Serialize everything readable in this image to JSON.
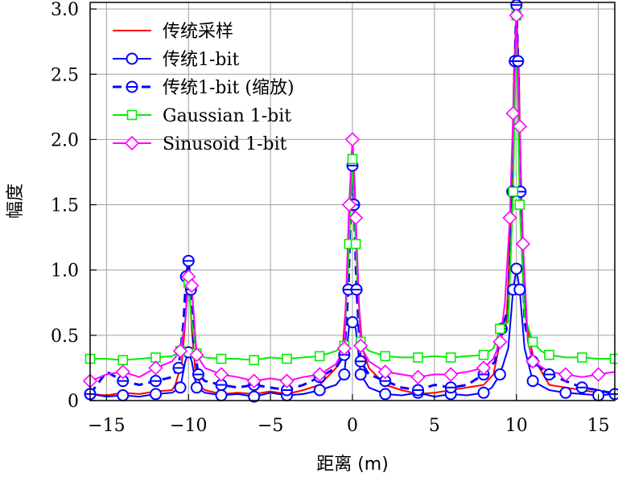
{
  "chart_data": {
    "type": "line",
    "xlabel": "距离 (m)",
    "ylabel": "幅度",
    "xlim": [
      -16,
      16
    ],
    "ylim": [
      0,
      3.05
    ],
    "xticks": [
      -15,
      -10,
      -5,
      0,
      5,
      10,
      15
    ],
    "xtick_labels": [
      "−15",
      "−10",
      "−5",
      "0",
      "5",
      "10",
      "15"
    ],
    "yticks": [
      0,
      0.5,
      1.0,
      1.5,
      2.0,
      2.5,
      3.0
    ],
    "ytick_labels": [
      "0",
      "0.5",
      "1.0",
      "1.5",
      "2.0",
      "2.5",
      "3.0"
    ],
    "grid": true,
    "legend_position": "top-left",
    "series": [
      {
        "name": "传统采样",
        "color": "#ff0000",
        "line_style": "solid",
        "marker": "none",
        "x": [
          -16,
          -15,
          -14,
          -13,
          -12,
          -11,
          -10.8,
          -10.4,
          -10.2,
          -10,
          -9.8,
          -9.6,
          -9.2,
          -9,
          -8,
          -7,
          -6,
          -5,
          -4,
          -3,
          -2,
          -1,
          -0.6,
          -0.3,
          -0.15,
          0,
          0.15,
          0.3,
          0.6,
          1,
          2,
          3,
          4,
          5,
          6,
          7,
          8,
          8.6,
          9,
          9.4,
          9.7,
          9.85,
          10,
          10.15,
          10.3,
          10.6,
          11,
          11.4,
          12,
          13,
          14,
          15,
          16
        ],
        "y": [
          0.05,
          0.04,
          0.06,
          0.05,
          0.07,
          0.08,
          0.12,
          0.3,
          0.6,
          1.0,
          0.55,
          0.25,
          0.1,
          0.08,
          0.05,
          0.06,
          0.05,
          0.07,
          0.05,
          0.08,
          0.12,
          0.25,
          0.4,
          0.9,
          1.6,
          2.0,
          1.6,
          0.9,
          0.4,
          0.25,
          0.12,
          0.08,
          0.05,
          0.06,
          0.08,
          0.1,
          0.12,
          0.2,
          0.45,
          0.6,
          1.5,
          2.5,
          3.0,
          2.5,
          1.5,
          0.6,
          0.35,
          0.25,
          0.12,
          0.1,
          0.08,
          0.06,
          0.07
        ]
      },
      {
        "name": "传统1-bit",
        "color": "#0000ff",
        "line_style": "solid",
        "marker": "circle",
        "x": [
          -16,
          -15,
          -14,
          -13,
          -12,
          -11,
          -10.5,
          -10.2,
          -10,
          -9.8,
          -9.5,
          -9,
          -8,
          -7,
          -6,
          -5,
          -4,
          -3,
          -2,
          -1,
          -0.5,
          -0.2,
          0,
          0.2,
          0.5,
          1,
          2,
          3,
          4,
          5,
          6,
          7,
          8,
          8.5,
          9,
          9.5,
          9.8,
          10,
          10.2,
          10.5,
          11,
          12,
          13,
          14,
          15,
          16
        ],
        "y": [
          0.05,
          0.03,
          0.04,
          0.03,
          0.05,
          0.06,
          0.1,
          0.3,
          0.37,
          0.3,
          0.1,
          0.06,
          0.04,
          0.05,
          0.03,
          0.06,
          0.04,
          0.05,
          0.08,
          0.12,
          0.2,
          0.57,
          0.6,
          0.55,
          0.2,
          0.1,
          0.05,
          0.04,
          0.06,
          0.03,
          0.05,
          0.04,
          0.06,
          0.1,
          0.2,
          0.4,
          0.85,
          1.01,
          0.85,
          0.4,
          0.15,
          0.08,
          0.06,
          0.05,
          0.04,
          0.05
        ]
      },
      {
        "name": "传统1-bit (缩放)",
        "color": "#0000ff",
        "line_style": "dashed",
        "marker": "circle-bar",
        "x": [
          -16,
          -15,
          -14,
          -13,
          -12,
          -11,
          -10.6,
          -10.3,
          -10.15,
          -10,
          -9.85,
          -9.7,
          -9.4,
          -9,
          -8,
          -7,
          -6,
          -5,
          -4,
          -3,
          -2,
          -1,
          -0.5,
          -0.25,
          -0.1,
          0,
          0.1,
          0.25,
          0.5,
          1,
          2,
          3,
          4,
          5,
          6,
          7,
          8,
          8.7,
          9.1,
          9.5,
          9.75,
          9.9,
          10,
          10.1,
          10.25,
          10.5,
          11,
          11.5,
          12,
          13,
          14,
          15,
          16
        ],
        "y": [
          0.05,
          0.22,
          0.15,
          0.12,
          0.15,
          0.18,
          0.25,
          0.6,
          0.95,
          1.07,
          0.85,
          0.45,
          0.2,
          0.15,
          0.12,
          0.1,
          0.12,
          0.1,
          0.08,
          0.12,
          0.18,
          0.25,
          0.35,
          0.85,
          1.5,
          1.8,
          1.5,
          0.85,
          0.3,
          0.2,
          0.15,
          0.1,
          0.08,
          0.12,
          0.1,
          0.12,
          0.2,
          0.3,
          0.55,
          0.7,
          1.6,
          2.6,
          3.03,
          2.6,
          1.6,
          0.6,
          0.3,
          0.25,
          0.2,
          0.15,
          0.1,
          0.08,
          0.05
        ]
      },
      {
        "name": "Gaussian 1-bit",
        "color": "#00ee00",
        "line_style": "solid",
        "marker": "square",
        "x": [
          -16,
          -15,
          -14,
          -13,
          -12,
          -11,
          -10.5,
          -10.2,
          -10,
          -9.8,
          -9.5,
          -9,
          -8,
          -7,
          -6,
          -5,
          -4,
          -3,
          -2,
          -1,
          -0.5,
          -0.2,
          0,
          0.2,
          0.5,
          1,
          2,
          3,
          4,
          5,
          6,
          7,
          8,
          8.6,
          9,
          9.5,
          9.8,
          10,
          10.2,
          10.5,
          11,
          11.5,
          12,
          13,
          14,
          15,
          16
        ],
        "y": [
          0.32,
          0.32,
          0.31,
          0.32,
          0.33,
          0.34,
          0.38,
          0.62,
          0.9,
          0.6,
          0.36,
          0.33,
          0.32,
          0.32,
          0.31,
          0.33,
          0.32,
          0.33,
          0.34,
          0.38,
          0.42,
          1.2,
          1.85,
          1.2,
          0.45,
          0.38,
          0.34,
          0.33,
          0.33,
          0.34,
          0.33,
          0.34,
          0.35,
          0.4,
          0.55,
          0.6,
          1.6,
          2.95,
          1.5,
          0.65,
          0.45,
          0.38,
          0.35,
          0.33,
          0.33,
          0.32,
          0.32
        ]
      },
      {
        "name": "Sinusoid 1-bit",
        "color": "#ff00ff",
        "line_style": "solid",
        "marker": "diamond",
        "x": [
          -16,
          -15,
          -14,
          -13,
          -12,
          -11,
          -10.5,
          -10.2,
          -10,
          -9.8,
          -9.5,
          -9,
          -8,
          -7,
          -6,
          -5,
          -4,
          -3,
          -2,
          -1,
          -0.5,
          -0.2,
          0,
          0.2,
          0.5,
          1,
          2,
          3,
          4,
          5,
          6,
          7,
          8,
          8.6,
          9,
          9.3,
          9.6,
          9.8,
          10,
          10.2,
          10.4,
          10.7,
          11,
          12,
          13,
          14,
          15,
          16
        ],
        "y": [
          0.15,
          0.2,
          0.22,
          0.18,
          0.25,
          0.3,
          0.38,
          0.6,
          0.95,
          0.88,
          0.35,
          0.25,
          0.2,
          0.18,
          0.15,
          0.17,
          0.15,
          0.18,
          0.2,
          0.28,
          0.4,
          1.5,
          2.0,
          1.4,
          0.42,
          0.3,
          0.22,
          0.2,
          0.18,
          0.2,
          0.2,
          0.22,
          0.25,
          0.32,
          0.45,
          0.75,
          1.4,
          2.2,
          2.95,
          2.1,
          1.2,
          0.45,
          0.3,
          0.22,
          0.2,
          0.18,
          0.2,
          0.22
        ]
      }
    ]
  }
}
